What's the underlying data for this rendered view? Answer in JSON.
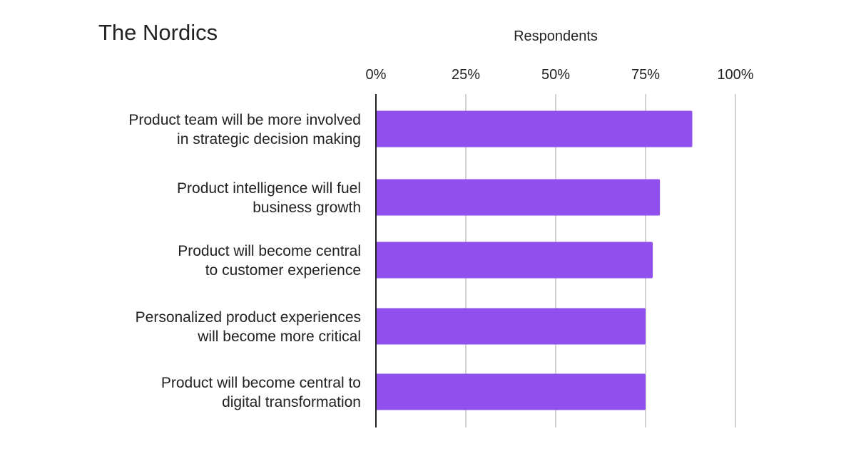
{
  "chart_data": {
    "type": "bar",
    "orientation": "horizontal",
    "title": "The Nordics",
    "xlabel": "Respondents",
    "ylabel": "",
    "xlim": [
      0,
      100
    ],
    "x_ticks": [
      "0%",
      "25%",
      "50%",
      "75%",
      "100%"
    ],
    "x_tick_values": [
      0,
      25,
      50,
      75,
      100
    ],
    "grid": true,
    "legend": "none",
    "bar_color": "#9150EE",
    "categories": [
      [
        "Product team will be more involved",
        "in strategic decision making"
      ],
      [
        "Product intelligence will fuel",
        "business growth"
      ],
      [
        "Product will become central",
        "to customer experience"
      ],
      [
        "Personalized product experiences",
        "will become more critical"
      ],
      [
        "Product will become central to",
        "digital transformation"
      ]
    ],
    "values": [
      88,
      79,
      77,
      75,
      75
    ]
  }
}
